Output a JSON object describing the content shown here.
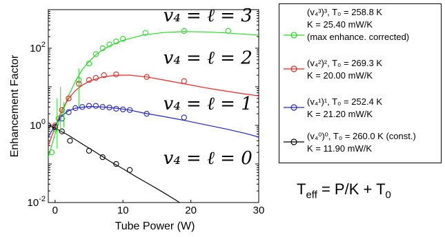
{
  "chart_data": {
    "type": "line",
    "title": "",
    "xlabel": "Tube Power (W)",
    "ylabel": "Enhancement Factor",
    "xlim": [
      -1,
      30
    ],
    "ylim": [
      0.01,
      1000
    ],
    "yscale": "log",
    "x_ticks": [
      0,
      10,
      20,
      30
    ],
    "x_tick_labels": [
      "0",
      "10",
      "20",
      "30"
    ],
    "y_ticks": [
      0.01,
      1,
      100
    ],
    "y_tick_labels": [
      "10^-2",
      "10^0",
      "10^2"
    ],
    "grid": false,
    "legend_position": "outside-right",
    "series": [
      {
        "name": "(v4^3)^3, T0 = 258.8 K, K = 25.40 mW/K (max enhance. corrected)",
        "color": "#22dd22",
        "curve_label": "v4 = l = 3",
        "points": [
          [
            -0.5,
            0.2
          ],
          [
            0,
            0.8
          ],
          [
            0.5,
            1.5
          ],
          [
            1,
            2.5
          ],
          [
            2,
            5
          ],
          [
            3.5,
            15
          ],
          [
            5,
            40
          ],
          [
            6,
            70
          ],
          [
            7,
            100
          ],
          [
            8,
            125
          ],
          [
            9,
            150
          ],
          [
            10,
            175
          ],
          [
            13.3,
            250
          ],
          [
            19,
            280
          ],
          [
            25.5,
            280
          ]
        ],
        "fit": [
          [
            -1,
            0.15
          ],
          [
            0,
            0.6
          ],
          [
            1,
            2
          ],
          [
            2,
            6
          ],
          [
            3,
            14
          ],
          [
            4,
            28
          ],
          [
            5,
            45
          ],
          [
            6,
            68
          ],
          [
            7,
            90
          ],
          [
            8,
            115
          ],
          [
            10,
            160
          ],
          [
            13,
            220
          ],
          [
            16,
            255
          ],
          [
            19,
            270
          ],
          [
            22,
            265
          ],
          [
            25,
            250
          ],
          [
            28,
            230
          ],
          [
            30,
            220
          ]
        ]
      },
      {
        "name": "(v4^2)^2, T0 = 269.3 K, K = 20.00 mW/K",
        "color": "#ee2222",
        "curve_label": "v4 = l = 2",
        "points": [
          [
            0,
            1
          ],
          [
            1,
            2.5
          ],
          [
            2,
            5
          ],
          [
            3.5,
            12
          ],
          [
            5,
            15
          ],
          [
            6,
            17
          ],
          [
            7.2,
            20
          ],
          [
            9,
            21
          ],
          [
            13.5,
            18
          ],
          [
            19,
            14
          ]
        ],
        "fit": [
          [
            -1,
            0.3
          ],
          [
            0,
            0.9
          ],
          [
            1,
            2.5
          ],
          [
            2,
            5
          ],
          [
            3,
            8
          ],
          [
            4,
            11
          ],
          [
            5,
            14
          ],
          [
            7,
            18
          ],
          [
            9,
            20
          ],
          [
            11,
            20
          ],
          [
            13.5,
            18
          ],
          [
            16,
            15
          ],
          [
            19,
            12
          ],
          [
            22,
            9.5
          ],
          [
            25,
            7.8
          ],
          [
            28,
            6.5
          ],
          [
            30,
            5.8
          ]
        ]
      },
      {
        "name": "(v4^1)^1, T0 = 252.4 K, K = 21.20 mW/K",
        "color": "#2222cc",
        "curve_label": "v4 = l = 1",
        "points": [
          [
            0,
            0.9
          ],
          [
            1,
            1.5
          ],
          [
            2,
            2.2
          ],
          [
            3,
            2.8
          ],
          [
            4,
            3.0
          ],
          [
            5,
            3.2
          ],
          [
            6,
            3.2
          ],
          [
            7,
            3.0
          ],
          [
            8,
            2.9
          ],
          [
            9,
            2.7
          ],
          [
            10,
            2.6
          ],
          [
            11,
            2.5
          ],
          [
            13.5,
            2.0
          ],
          [
            19,
            1.6
          ]
        ],
        "fit": [
          [
            -1,
            0.5
          ],
          [
            0,
            1.0
          ],
          [
            1,
            1.8
          ],
          [
            2,
            2.4
          ],
          [
            3,
            2.8
          ],
          [
            5,
            3.1
          ],
          [
            7,
            3.0
          ],
          [
            9,
            2.8
          ],
          [
            11,
            2.5
          ],
          [
            13,
            2.1
          ],
          [
            16,
            1.7
          ],
          [
            19,
            1.35
          ],
          [
            22,
            1.05
          ],
          [
            25,
            0.82
          ],
          [
            28,
            0.62
          ],
          [
            30,
            0.5
          ]
        ]
      },
      {
        "name": "(v4^0)^0, T0 = 260.0 K (const.), K = 11.90 mW/K",
        "color": "#000000",
        "curve_label": "v4 = l = 0",
        "points": [
          [
            -1,
            1.0
          ],
          [
            0,
            0.9
          ],
          [
            1,
            0.7
          ],
          [
            2.2,
            0.4
          ],
          [
            5,
            0.22
          ],
          [
            7,
            0.15
          ],
          [
            9,
            0.1
          ],
          [
            11,
            0.07
          ]
        ],
        "fit": [
          [
            -1,
            1.0
          ],
          [
            0,
            0.85
          ],
          [
            2,
            0.55
          ],
          [
            4,
            0.33
          ],
          [
            6,
            0.2
          ],
          [
            8,
            0.12
          ],
          [
            10,
            0.075
          ],
          [
            12,
            0.046
          ],
          [
            14,
            0.029
          ],
          [
            16,
            0.018
          ],
          [
            18,
            0.011
          ],
          [
            20,
            0.0065
          ],
          [
            22,
            0.0038
          ],
          [
            23,
            0.003
          ]
        ]
      }
    ]
  },
  "legend": {
    "entries": [
      {
        "lines": [
          "(v₄³)³, T₀ = 258.8 K",
          "K = 25.40 mW/K",
          "(max enhance. corrected)"
        ],
        "color": "#22dd22"
      },
      {
        "lines": [
          "(v₄²)², T₀ = 269.3 K",
          "K = 20.00 mW/K"
        ],
        "color": "#ee2222"
      },
      {
        "lines": [
          "(v₄¹)¹, T₀ = 252.4 K",
          "K = 21.20 mW/K"
        ],
        "color": "#2222cc"
      },
      {
        "lines": [
          "(v₄⁰)⁰, T₀ = 260.0 K (const.)",
          "K = 11.90 mW/K"
        ],
        "color": "#000000"
      }
    ]
  },
  "formula": {
    "prefix": "T",
    "sub_eff": "eff",
    "middle": " = P/K + T",
    "sub_0": "0"
  }
}
